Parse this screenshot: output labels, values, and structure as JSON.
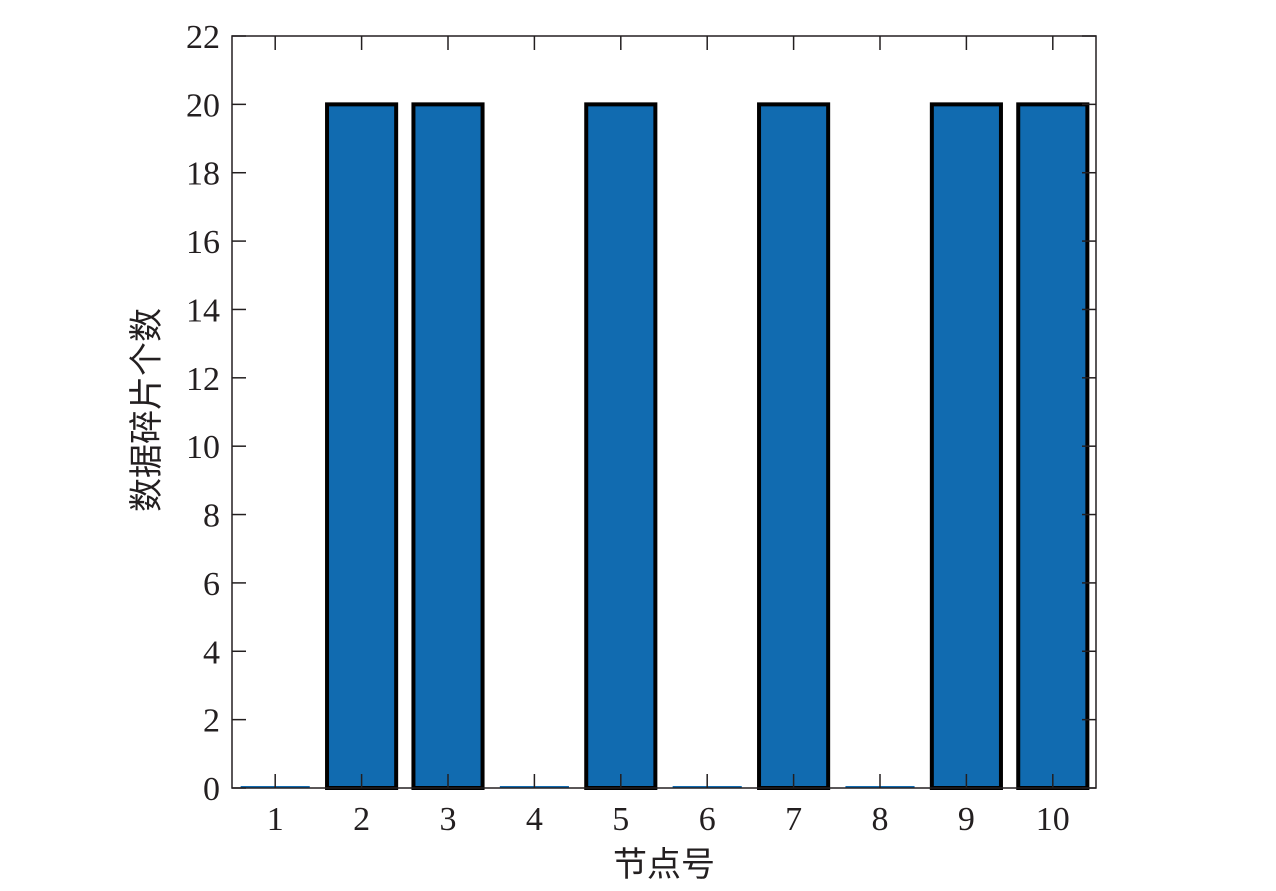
{
  "chart_data": {
    "type": "bar",
    "categories": [
      "1",
      "2",
      "3",
      "4",
      "5",
      "6",
      "7",
      "8",
      "9",
      "10"
    ],
    "values": [
      0,
      20,
      20,
      0,
      20,
      0,
      20,
      0,
      20,
      20
    ],
    "title": "",
    "xlabel": "节点号",
    "ylabel": "数据碎片个数",
    "ylim": [
      0,
      22
    ],
    "yticks": [
      "0",
      "2",
      "4",
      "6",
      "8",
      "10",
      "12",
      "14",
      "16",
      "18",
      "20",
      "22"
    ],
    "grid": false,
    "bar_color": "#116bb0",
    "bar_edge_color": "#000000"
  }
}
